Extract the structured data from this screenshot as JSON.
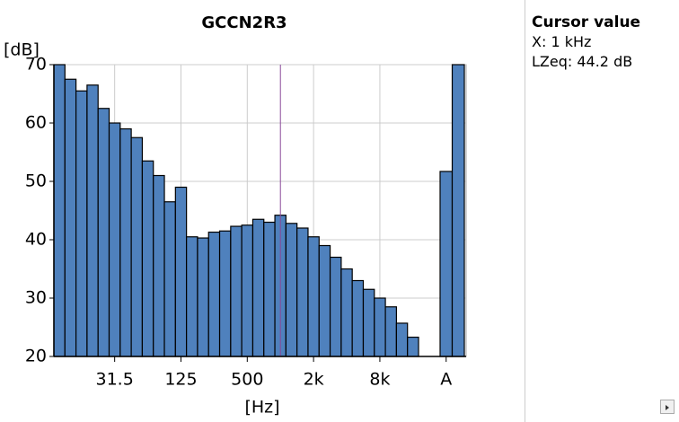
{
  "chart_data": {
    "type": "bar",
    "title": "GCCN2R3",
    "y_label": "[dB]",
    "x_label": "[Hz]",
    "categories": [
      null,
      null,
      null,
      null,
      null,
      "31.5",
      null,
      null,
      null,
      null,
      null,
      "125",
      null,
      null,
      null,
      null,
      null,
      "500",
      null,
      null,
      null,
      null,
      null,
      "2k",
      null,
      null,
      null,
      null,
      null,
      "8k",
      null,
      null,
      null,
      "A",
      null
    ],
    "values": [
      70,
      67.5,
      65.5,
      66.5,
      62.5,
      60,
      59,
      57.5,
      53.5,
      51,
      46.5,
      49,
      40.5,
      40.3,
      41.3,
      41.5,
      42.3,
      42.5,
      43.5,
      43,
      44.2,
      42.8,
      42,
      40.5,
      39,
      37,
      35,
      33,
      31.5,
      30,
      28.5,
      25.7,
      23.3,
      51.7,
      70
    ],
    "color": "#4f81bd",
    "ylim": [
      20,
      70
    ],
    "yticks": [
      20,
      30,
      40,
      50,
      60,
      70
    ],
    "grid": true,
    "cursor_index": 20
  },
  "panel": {
    "heading": "Cursor value",
    "x": "X: 1 kHz",
    "level": "LZeq: 44.2 dB"
  }
}
